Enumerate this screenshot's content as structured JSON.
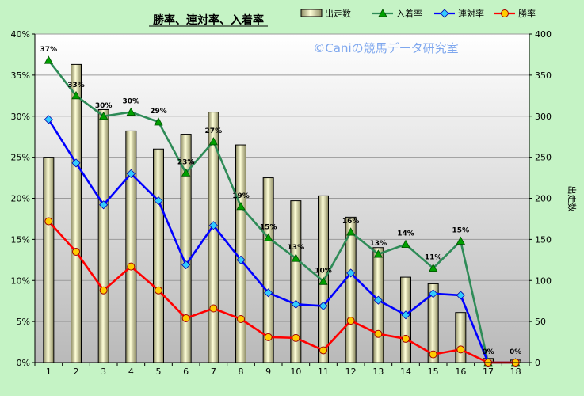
{
  "chart_data": {
    "type": "bar+line",
    "title": "勝率、連対率、入着率",
    "watermark": "©Caniの競馬データ研究室",
    "ylabel_right": "出走数",
    "categories": [
      "1",
      "2",
      "3",
      "4",
      "5",
      "6",
      "7",
      "8",
      "9",
      "10",
      "11",
      "12",
      "13",
      "14",
      "15",
      "16",
      "17",
      "18"
    ],
    "y_left": {
      "min": 0,
      "max": 40,
      "step": 5,
      "unit": "%",
      "ticks": [
        "0%",
        "5%",
        "10%",
        "15%",
        "20%",
        "25%",
        "30%",
        "35%",
        "40%"
      ]
    },
    "y_right": {
      "min": 0,
      "max": 400,
      "step": 50,
      "ticks": [
        "0",
        "50",
        "100",
        "150",
        "200",
        "250",
        "300",
        "350",
        "400"
      ]
    },
    "bar_series": {
      "name": "出走数",
      "axis": "right",
      "values": [
        250,
        363,
        308,
        282,
        260,
        278,
        305,
        265,
        225,
        197,
        203,
        177,
        140,
        104,
        96,
        61,
        5,
        3
      ]
    },
    "line_series": [
      {
        "name": "入着率",
        "color": "#2e8b57",
        "marker": "triangle",
        "marker_color": "#00a000",
        "values": [
          36.8,
          32.5,
          30.0,
          30.5,
          29.3,
          23.1,
          26.9,
          19.0,
          15.2,
          12.7,
          9.9,
          15.9,
          13.2,
          14.4,
          11.5,
          14.8,
          0,
          0
        ],
        "labels": [
          "37%",
          "33%",
          "30%",
          "30%",
          "29%",
          "23%",
          "27%",
          "19%",
          "15%",
          "13%",
          "10%",
          "16%",
          "13%",
          "14%",
          "11%",
          "15%",
          "0%",
          "0%"
        ]
      },
      {
        "name": "連対率",
        "color": "#0000ff",
        "marker": "diamond",
        "marker_color": "#33ccff",
        "values": [
          29.6,
          24.3,
          19.2,
          23.0,
          19.7,
          11.9,
          16.7,
          12.5,
          8.5,
          7.1,
          6.9,
          10.9,
          7.6,
          5.8,
          8.4,
          8.2,
          0,
          0
        ]
      },
      {
        "name": "勝率",
        "color": "#ff0000",
        "marker": "circle",
        "marker_color": "#ffcc00",
        "values": [
          17.2,
          13.5,
          8.8,
          11.7,
          8.8,
          5.4,
          6.6,
          5.3,
          3.1,
          3.0,
          1.5,
          5.1,
          3.5,
          2.9,
          1.0,
          1.6,
          0,
          0
        ]
      }
    ],
    "legend": {
      "position": "top-right",
      "entries": [
        "出走数",
        "入着率",
        "連対率",
        "勝率"
      ]
    }
  }
}
